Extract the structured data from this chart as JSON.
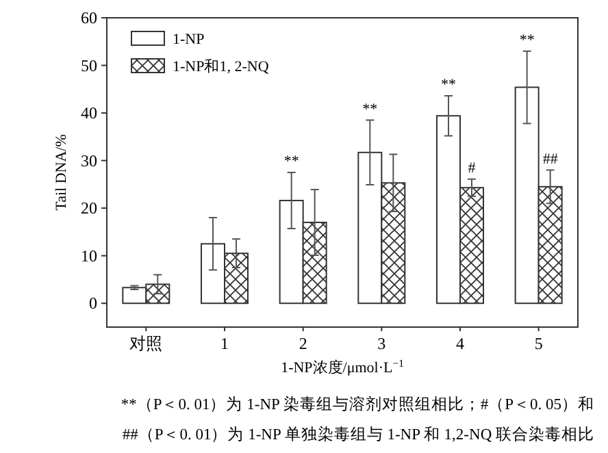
{
  "chart_data": {
    "type": "bar",
    "xlabel": "1-NP浓度/μmol·L$^{−1}$",
    "ylabel": "Tail DNA/%",
    "categories": [
      "对照",
      "1",
      "2",
      "3",
      "4",
      "5"
    ],
    "series": [
      {
        "name": "1-NP",
        "color": "#ffffff",
        "values": [
          3.3,
          12.5,
          21.6,
          31.7,
          39.4,
          45.4
        ],
        "errors": [
          0.4,
          5.5,
          5.9,
          6.8,
          4.2,
          7.6
        ]
      },
      {
        "name": "1-NP和1, 2-NQ",
        "color": "#333333",
        "values": [
          4,
          10.5,
          17,
          25.3,
          24.3,
          24.5
        ],
        "errors": [
          2,
          3,
          6.9,
          6,
          1.8,
          3.5
        ]
      }
    ],
    "ylim": [
      -5,
      60
    ],
    "yticks": [
      0,
      10,
      20,
      30,
      40,
      50,
      60
    ],
    "legend": "top left",
    "grid": false,
    "annotations": [
      {
        "text": "**",
        "x": "2",
        "y": 21.6
      },
      {
        "text": "**",
        "x": "3",
        "y": 31.7
      },
      {
        "text": "**",
        "x": "4",
        "y": 39.4
      },
      {
        "text": "**",
        "x": "5",
        "y": 45.4
      },
      {
        "text": "#",
        "x": "4",
        "y": 24.3
      },
      {
        "text": "##",
        "x": "5",
        "y": 24.5
      },
      "**（P＜0. 01）为 1-NP 染毒组与溶剂对照组相比；#（P＜0. 05）和",
      "##（P＜0. 01）为 1-NP 单独染毒组与 1-NP 和 1,2-NQ 联合染毒相比"
    ]
  }
}
